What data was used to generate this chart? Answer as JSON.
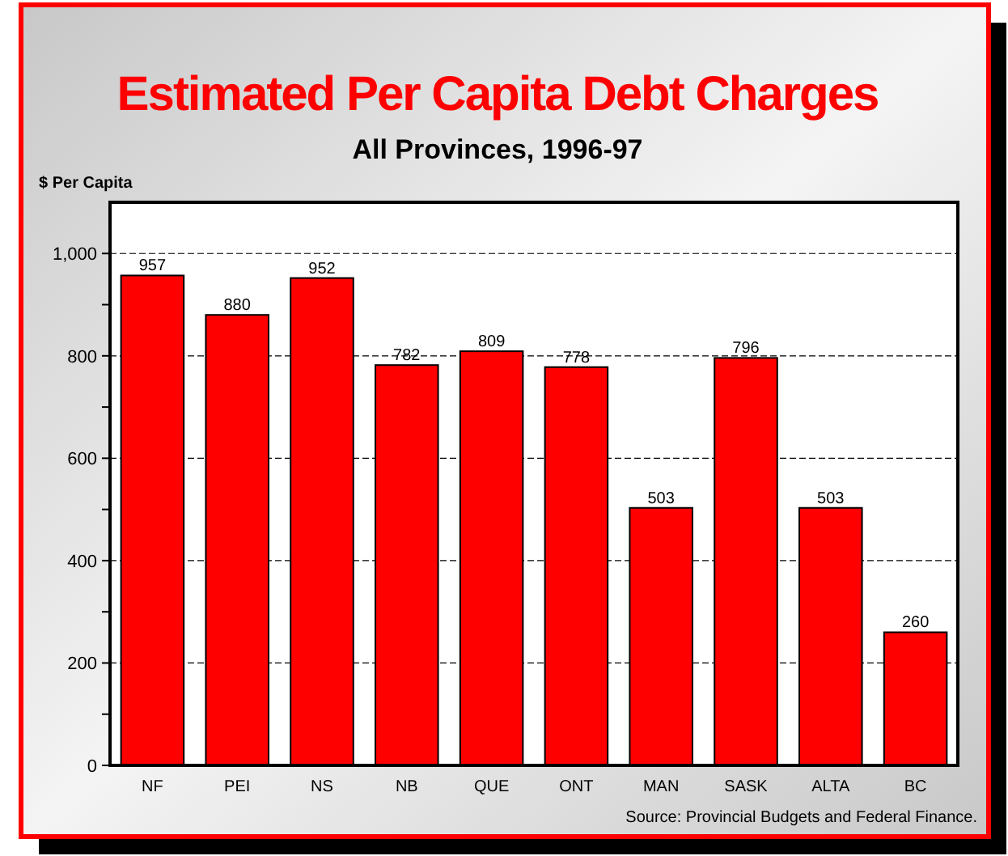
{
  "chart_data": {
    "type": "bar",
    "title": "Estimated Per Capita Debt Charges",
    "subtitle": "All Provinces, 1996-97",
    "ylabel": "$ Per Capita",
    "categories": [
      "NF",
      "PEI",
      "NS",
      "NB",
      "QUE",
      "ONT",
      "MAN",
      "SASK",
      "ALTA",
      "BC"
    ],
    "values": [
      957,
      880,
      952,
      782,
      809,
      778,
      503,
      796,
      503,
      260
    ],
    "color": "#ff0000",
    "data_labels": true,
    "ylim": [
      0,
      1100
    ],
    "yticks": [
      0,
      {
        "value": 100,
        "label": null
      },
      200,
      {
        "value": 300,
        "label": null
      },
      {
        "value": 400,
        "label": "400"
      },
      {
        "value": 500,
        "label": null
      },
      600,
      {
        "value": 700,
        "label": null
      },
      800,
      {
        "value": 900,
        "label": null
      },
      {
        "value": 1000,
        "label": "1,000"
      }
    ],
    "grid": "y",
    "line_style": "dashed",
    "annotations": [
      "Source: Provincial Budgets and Federal Finance."
    ]
  }
}
